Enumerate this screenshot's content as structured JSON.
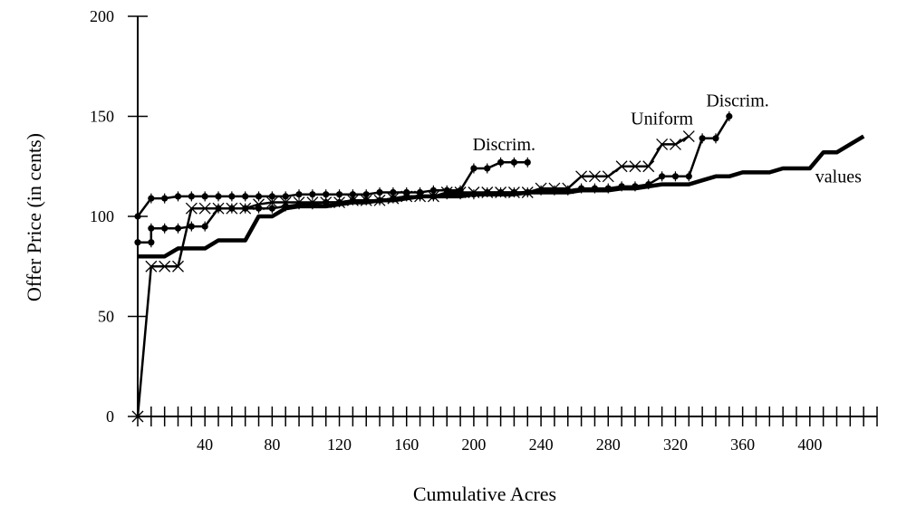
{
  "chart_data": {
    "type": "line",
    "title": "",
    "xlabel": "Cumulative Acres",
    "ylabel": "Offer Price (in cents)",
    "xlim": [
      0,
      440
    ],
    "ylim": [
      0,
      200
    ],
    "x_ticks": [
      40,
      80,
      120,
      160,
      200,
      240,
      280,
      320,
      360,
      400
    ],
    "y_ticks": [
      0,
      50,
      100,
      150,
      200
    ],
    "x_minor_step": 8,
    "grid": false,
    "legend": "none",
    "annotations": [
      {
        "text": "Discrim.",
        "x": 218,
        "y": 133
      },
      {
        "text": "Uniform",
        "x": 312,
        "y": 146
      },
      {
        "text": "Discrim.",
        "x": 357,
        "y": 155
      },
      {
        "text": "values",
        "x": 417,
        "y": 117
      }
    ],
    "series": [
      {
        "marker": "none",
        "width": 4.5,
        "x": [
          0,
          8,
          8,
          16,
          24,
          32,
          40,
          48,
          56,
          64,
          72,
          80,
          88,
          96,
          104,
          112,
          120,
          128,
          136,
          144,
          152,
          160,
          168,
          176,
          184,
          192,
          200,
          208,
          216,
          224,
          232,
          240,
          248,
          256,
          264,
          272,
          280,
          288,
          296,
          304,
          312,
          320,
          328,
          336,
          344,
          352,
          360,
          368,
          376,
          384,
          392,
          400,
          408,
          416,
          424,
          432
        ],
        "y": [
          80,
          80,
          80,
          80,
          84,
          84,
          84,
          88,
          88,
          88,
          100,
          100,
          104,
          105,
          105,
          105,
          106,
          107,
          107,
          108,
          108,
          109,
          110,
          110,
          110,
          110,
          111,
          111,
          111,
          111,
          112,
          112,
          112,
          112,
          113,
          113,
          113,
          114,
          114,
          115,
          116,
          116,
          116,
          118,
          120,
          120,
          122,
          122,
          122,
          124,
          124,
          124,
          132,
          132,
          136,
          140
        ]
      },
      {
        "marker": "x",
        "width": 2.5,
        "x": [
          0,
          8,
          16,
          24,
          32,
          40,
          48,
          56,
          64,
          72,
          80,
          88,
          96,
          104,
          112,
          120,
          128,
          136,
          144,
          152,
          160,
          168,
          176,
          184,
          192,
          200,
          208,
          216,
          224,
          232,
          240,
          248,
          256,
          264,
          272,
          280,
          288,
          296,
          304,
          312,
          320,
          328
        ],
        "y": [
          0,
          75,
          75,
          75,
          104,
          104,
          104,
          104,
          104,
          106,
          107,
          107,
          107,
          107,
          107,
          107,
          108,
          108,
          108,
          109,
          110,
          110,
          110,
          112,
          112,
          112,
          112,
          112,
          112,
          112,
          114,
          114,
          114,
          120,
          120,
          120,
          125,
          125,
          125,
          136,
          136,
          140
        ]
      },
      {
        "marker": "dot",
        "width": 2.5,
        "x": [
          0,
          8,
          8,
          16,
          24,
          32,
          40,
          48,
          56,
          64,
          72,
          80,
          88,
          96,
          104,
          112,
          120,
          128,
          136,
          144,
          152,
          160,
          168,
          176,
          184,
          192,
          200,
          208,
          216,
          224,
          232,
          240,
          248,
          256,
          264,
          272,
          280,
          288,
          296,
          304,
          312,
          320,
          328,
          336,
          344,
          352
        ],
        "y": [
          87,
          87,
          94,
          94,
          94,
          95,
          95,
          104,
          104,
          104,
          104,
          104,
          105,
          106,
          106,
          107,
          107,
          108,
          108,
          108,
          109,
          110,
          110,
          110,
          111,
          111,
          111,
          112,
          112,
          112,
          112,
          113,
          113,
          113,
          114,
          114,
          114,
          115,
          115,
          116,
          120,
          120,
          120,
          139,
          139,
          150
        ]
      },
      {
        "marker": "dot",
        "width": 2.5,
        "x": [
          0,
          8,
          16,
          24,
          32,
          40,
          48,
          56,
          64,
          72,
          80,
          88,
          96,
          104,
          112,
          120,
          128,
          136,
          144,
          152,
          160,
          168,
          176,
          184,
          192,
          200,
          208,
          216,
          224,
          232
        ],
        "y": [
          100,
          109,
          109,
          110,
          110,
          110,
          110,
          110,
          110,
          110,
          110,
          110,
          111,
          111,
          111,
          111,
          111,
          111,
          112,
          112,
          112,
          112,
          113,
          113,
          113,
          124,
          124,
          127,
          127,
          127
        ]
      }
    ]
  }
}
